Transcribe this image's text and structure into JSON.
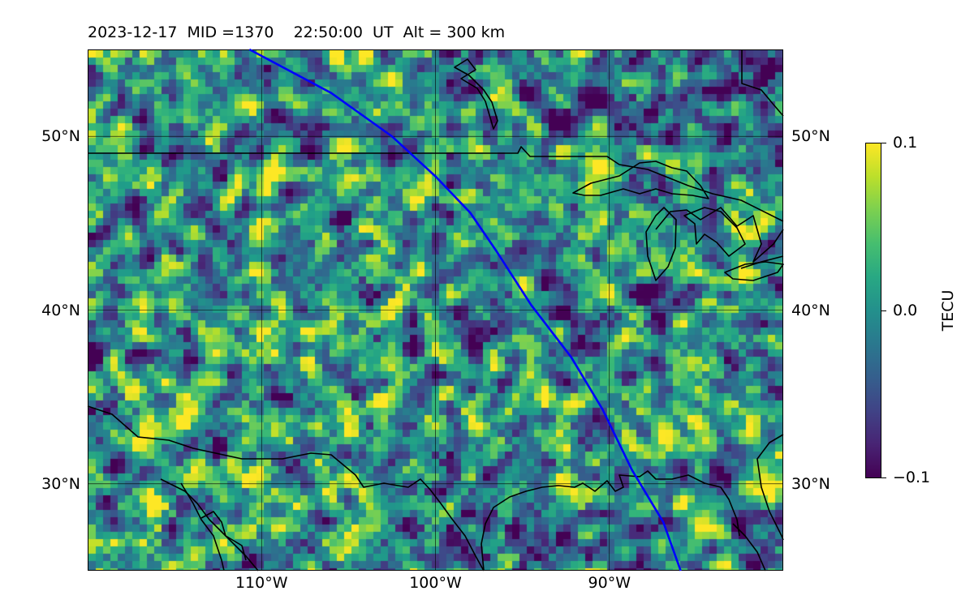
{
  "title": "2023-12-17  MID =1370    22:50:00  UT  Alt = 300 km",
  "map": {
    "lon_range": [
      -120,
      -80
    ],
    "lat_range": [
      25,
      55
    ],
    "lat_ticks": [
      {
        "value": 50,
        "label": "50°N"
      },
      {
        "value": 40,
        "label": "40°N"
      },
      {
        "value": 30,
        "label": "30°N"
      }
    ],
    "lon_ticks": [
      {
        "value": -110,
        "label": "110°W"
      },
      {
        "value": -100,
        "label": "100°W"
      },
      {
        "value": -90,
        "label": "90°W"
      }
    ],
    "grid": true,
    "satellite_track": {
      "color": "#0000ff",
      "points": [
        [
          -110.7,
          55
        ],
        [
          -106,
          52.5
        ],
        [
          -102.5,
          50
        ],
        [
          -100,
          47.7
        ],
        [
          -98,
          45.6
        ],
        [
          -96.5,
          43.4
        ],
        [
          -94.5,
          40.3
        ],
        [
          -92.2,
          37.3
        ],
        [
          -90.4,
          34.3
        ],
        [
          -88.7,
          30.8
        ],
        [
          -86.9,
          27.8
        ],
        [
          -85.9,
          25
        ]
      ]
    },
    "coastline_color": "#000000"
  },
  "colorbar": {
    "label": "TECU",
    "min": -0.1,
    "max": 0.1,
    "ticks": [
      {
        "value": 0.1,
        "label": "0.1"
      },
      {
        "value": 0.0,
        "label": "0.0"
      },
      {
        "value": -0.1,
        "label": "−0.1"
      }
    ],
    "colormap": "viridis"
  }
}
